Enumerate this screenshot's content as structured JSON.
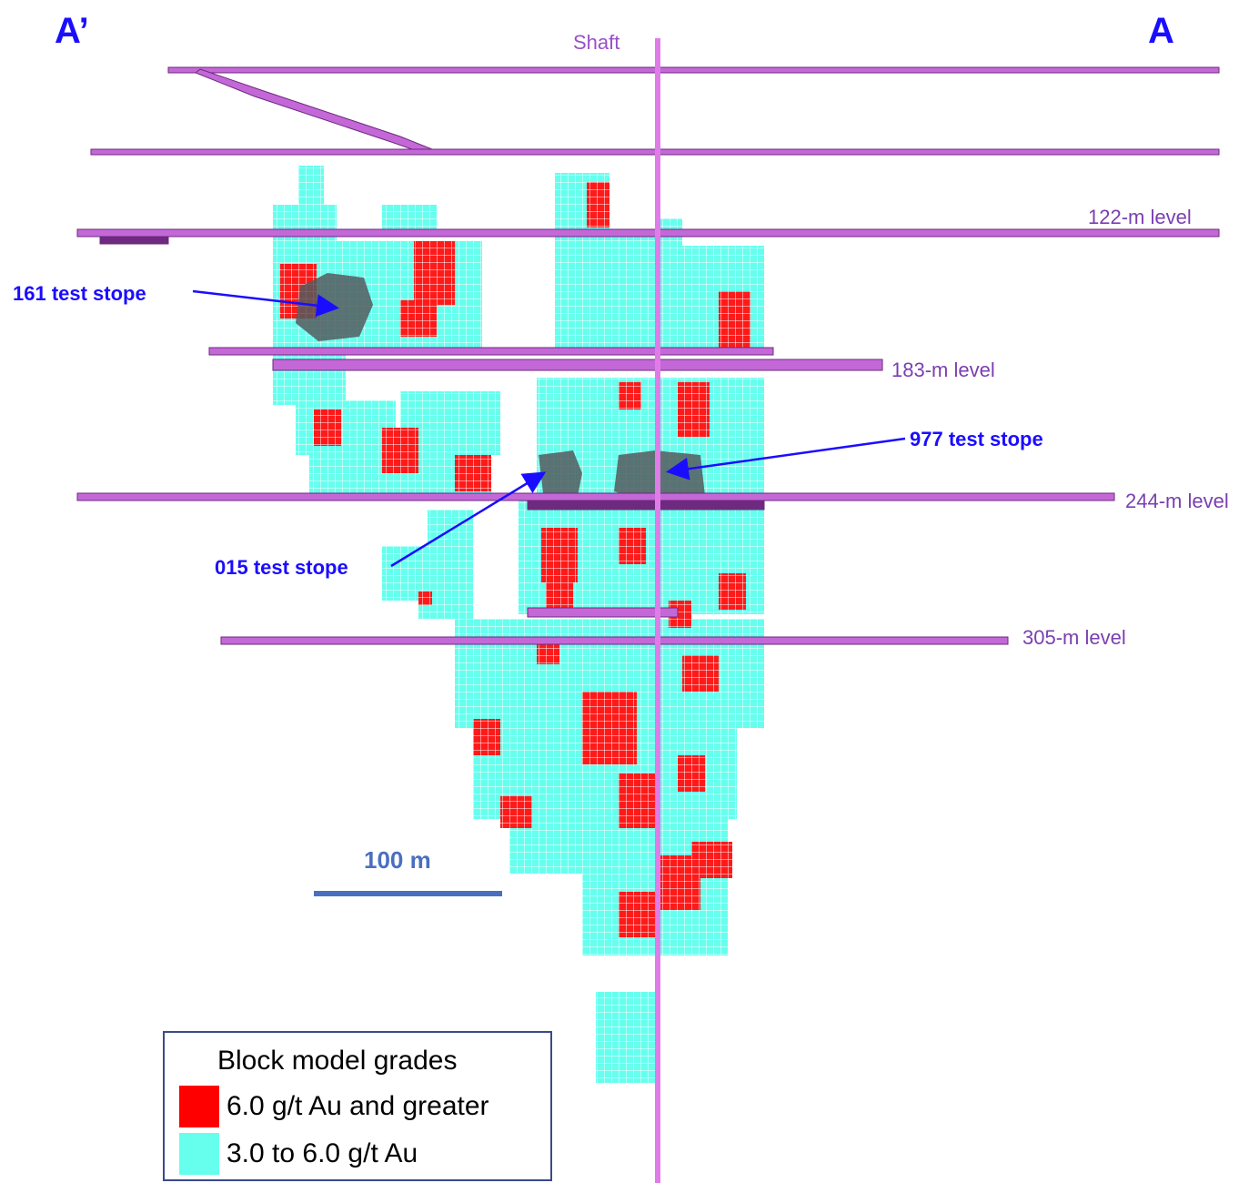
{
  "section": {
    "left_label": "A’",
    "right_label": "A"
  },
  "shaft": {
    "label": "Shaft"
  },
  "levels": [
    {
      "label": "122-m level"
    },
    {
      "label": "183-m level"
    },
    {
      "label": "244-m level"
    },
    {
      "label": "305-m level"
    }
  ],
  "stopes": [
    {
      "label": "161 test stope"
    },
    {
      "label": "977 test stope"
    },
    {
      "label": "015 test stope"
    }
  ],
  "scale_bar": {
    "label": "100 m"
  },
  "legend": {
    "title": "Block model grades",
    "items": [
      {
        "label": "6.0 g/t Au and greater",
        "color": "#ff0000"
      },
      {
        "label": "3.0 to 6.0 g/t Au",
        "color": "#66ffee"
      }
    ]
  },
  "colors": {
    "drift": "#c468d8",
    "drift_dark": "#6e2a7e",
    "shaft": "#e07ce8",
    "arrow": "#1a0dff",
    "scale": "#4a6fc0",
    "high_grade": "#ff0000",
    "low_grade": "#66ffee"
  }
}
